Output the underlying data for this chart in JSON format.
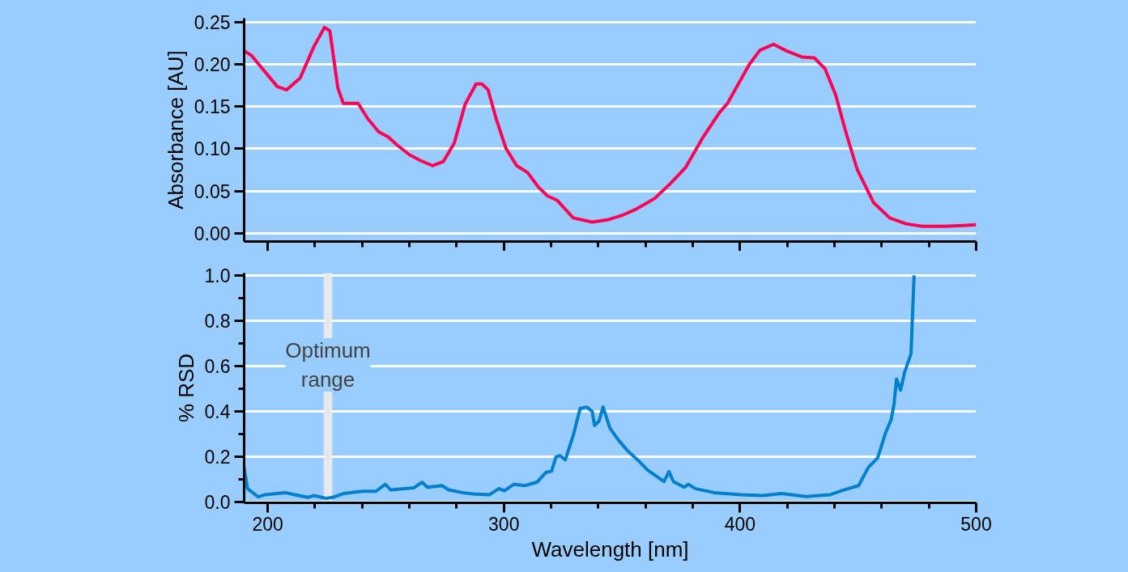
{
  "chart_data": [
    {
      "type": "line",
      "ylabel": "Absorbance [AU]",
      "xlim": [
        190,
        500
      ],
      "ylim": [
        -0.01,
        0.255
      ],
      "xticks": [
        200,
        {
          "value": 220,
          "label": null
        },
        {
          "value": 240,
          "label": null
        },
        {
          "value": 260,
          "label": null
        },
        {
          "value": 280,
          "label": null
        },
        300,
        {
          "value": 320,
          "label": null
        },
        {
          "value": 340,
          "label": null
        },
        {
          "value": 360,
          "label": null
        },
        {
          "value": 380,
          "label": null
        },
        400,
        {
          "value": 420,
          "label": null
        },
        {
          "value": 440,
          "label": null
        },
        {
          "value": 460,
          "label": null
        },
        {
          "value": 480,
          "label": null
        },
        500
      ],
      "yticks": [
        {
          "value": 0,
          "label": "0.00"
        },
        0.05,
        {
          "value": 0.1,
          "label": "0.10"
        },
        0.15,
        {
          "value": 0.2,
          "label": "0.20"
        },
        0.25
      ],
      "tick_labels": "y",
      "grid": "y",
      "marker": "none",
      "line_style": "solid",
      "series": [
        {
          "color": "#ff0055",
          "x": [
            190.2,
            193,
            204,
            208,
            213.7,
            219.5,
            224,
            226.3,
            229.7,
            232,
            238.3,
            242.3,
            247,
            251,
            255,
            260,
            264.7,
            269.8,
            274.4,
            279,
            283.6,
            288.2,
            290.7,
            293.3,
            296.8,
            300.8,
            305.4,
            310,
            314.5,
            318.5,
            322.5,
            329.4,
            337.4,
            344.3,
            350,
            355.7,
            363.8,
            370.6,
            377,
            384.4,
            391.3,
            394.7,
            403.9,
            408.4,
            414.2,
            419.9,
            426.2,
            431.4,
            436,
            440.5,
            445.1,
            449.7,
            456.6,
            463.4,
            470.3,
            477.2,
            486.3,
            494.4,
            500
          ],
          "values": [
            0.216,
            0.211,
            0.174,
            0.17,
            0.184,
            0.221,
            0.244,
            0.24,
            0.172,
            0.154,
            0.154,
            0.136,
            0.12,
            0.114,
            0.104,
            0.093,
            0.086,
            0.08,
            0.085,
            0.107,
            0.153,
            0.177,
            0.177,
            0.17,
            0.135,
            0.101,
            0.08,
            0.072,
            0.055,
            0.044,
            0.039,
            0.018,
            0.013,
            0.016,
            0.021,
            0.028,
            0.041,
            0.059,
            0.078,
            0.114,
            0.143,
            0.154,
            0.2,
            0.217,
            0.224,
            0.216,
            0.209,
            0.208,
            0.195,
            0.164,
            0.117,
            0.075,
            0.036,
            0.018,
            0.011,
            0.008,
            0.008,
            0.009,
            0.01
          ]
        }
      ]
    },
    {
      "type": "line",
      "xlabel": "Wavelength [nm]",
      "ylabel": "% RSD",
      "xlim": [
        190,
        500
      ],
      "ylim": [
        -0.005,
        1.01
      ],
      "xticks": [
        200,
        {
          "value": 220,
          "label": null
        },
        {
          "value": 240,
          "label": null
        },
        {
          "value": 260,
          "label": null
        },
        {
          "value": 280,
          "label": null
        },
        300,
        {
          "value": 320,
          "label": null
        },
        {
          "value": 340,
          "label": null
        },
        {
          "value": 360,
          "label": null
        },
        {
          "value": 380,
          "label": null
        },
        400,
        {
          "value": 420,
          "label": null
        },
        {
          "value": 440,
          "label": null
        },
        {
          "value": 460,
          "label": null
        },
        {
          "value": 480,
          "label": null
        },
        500
      ],
      "yticks": [
        {
          "value": 0,
          "label": "0.0"
        },
        {
          "value": 0.1,
          "label": null
        },
        0.2,
        {
          "value": 0.3,
          "label": null
        },
        0.4,
        {
          "value": 0.5,
          "label": null
        },
        0.6,
        {
          "value": 0.7,
          "label": null
        },
        0.8,
        {
          "value": 0.9,
          "label": null
        },
        {
          "value": 1,
          "label": "1.0"
        }
      ],
      "grid": "y",
      "marker": "none",
      "line_style": "solid",
      "bands": [
        {
          "axis": "x",
          "from": 224,
          "to": 227,
          "label": "Optimum\nrange",
          "color": "#e8e8e8"
        }
      ],
      "series": [
        {
          "color": "#0080cc",
          "x": [
            190,
            191.4,
            196,
            198.8,
            207.4,
            211.4,
            217.1,
            219.4,
            224.6,
            227.5,
            232,
            240,
            245.8,
            249.8,
            252.1,
            261.8,
            265.3,
            267.6,
            273.8,
            276.7,
            282.4,
            288.2,
            293.9,
            297.9,
            300.2,
            304.2,
            308.8,
            314,
            317.9,
            320.2,
            322,
            323.7,
            326,
            329.4,
            332.3,
            335.1,
            337.4,
            338.4,
            340.3,
            342,
            344.9,
            348.3,
            352.3,
            356.9,
            360.9,
            367.8,
            369.9,
            371.8,
            376.4,
            378.1,
            381,
            389,
            400.5,
            409.6,
            417.6,
            427.9,
            438.2,
            443.9,
            450.2,
            454.3,
            458.3,
            461.7,
            464,
            465.2,
            466.3,
            468,
            469.7,
            472.4,
            473.7
          ],
          "values": [
            0.151,
            0.058,
            0.021,
            0.031,
            0.04,
            0.031,
            0.019,
            0.027,
            0.015,
            0.019,
            0.036,
            0.046,
            0.046,
            0.077,
            0.052,
            0.061,
            0.086,
            0.064,
            0.071,
            0.052,
            0.04,
            0.033,
            0.031,
            0.058,
            0.048,
            0.077,
            0.071,
            0.086,
            0.13,
            0.135,
            0.197,
            0.204,
            0.185,
            0.294,
            0.412,
            0.418,
            0.399,
            0.337,
            0.356,
            0.418,
            0.325,
            0.275,
            0.226,
            0.182,
            0.139,
            0.089,
            0.133,
            0.089,
            0.064,
            0.077,
            0.058,
            0.04,
            0.031,
            0.027,
            0.036,
            0.023,
            0.031,
            0.052,
            0.071,
            0.151,
            0.194,
            0.306,
            0.362,
            0.43,
            0.542,
            0.492,
            0.572,
            0.653,
            1.0
          ]
        }
      ]
    }
  ]
}
